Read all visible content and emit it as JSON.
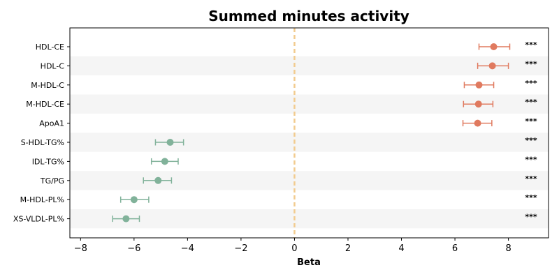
{
  "chart_data": {
    "type": "forest",
    "title": "Summed minutes activity",
    "xlabel": "Beta",
    "xlim": [
      -8.4,
      9.5
    ],
    "xticks": [
      -8,
      -6,
      -4,
      -2,
      0,
      2,
      4,
      6,
      8
    ],
    "xtick_labels": [
      "−8",
      "−6",
      "−4",
      "−2",
      "0",
      "2",
      "4",
      "6",
      "8"
    ],
    "reference_line": 0,
    "colors": {
      "positive": "#E07A5F",
      "negative": "#81B29A",
      "reference_line": "#F2CC8F",
      "band": "#F5F5F5"
    },
    "rows": [
      {
        "label": "HDL-CE",
        "beta": 7.45,
        "ci_low": 6.9,
        "ci_high": 8.05,
        "sig": "***"
      },
      {
        "label": "HDL-C",
        "beta": 7.4,
        "ci_low": 6.85,
        "ci_high": 8.0,
        "sig": "***"
      },
      {
        "label": "M-HDL-C",
        "beta": 6.9,
        "ci_low": 6.35,
        "ci_high": 7.45,
        "sig": "***"
      },
      {
        "label": "M-HDL-CE",
        "beta": 6.88,
        "ci_low": 6.32,
        "ci_high": 7.42,
        "sig": "***"
      },
      {
        "label": "ApoA1",
        "beta": 6.85,
        "ci_low": 6.3,
        "ci_high": 7.38,
        "sig": "***"
      },
      {
        "label": "S-HDL-TG%",
        "beta": -4.65,
        "ci_low": -5.2,
        "ci_high": -4.15,
        "sig": "***"
      },
      {
        "label": "IDL-TG%",
        "beta": -4.85,
        "ci_low": -5.35,
        "ci_high": -4.35,
        "sig": "***"
      },
      {
        "label": "TG/PG",
        "beta": -5.1,
        "ci_low": -5.65,
        "ci_high": -4.6,
        "sig": "***"
      },
      {
        "label": "M-HDL-PL%",
        "beta": -6.0,
        "ci_low": -6.5,
        "ci_high": -5.45,
        "sig": "***"
      },
      {
        "label": "XS-VLDL-PL%",
        "beta": -6.3,
        "ci_low": -6.8,
        "ci_high": -5.8,
        "sig": "***"
      }
    ]
  }
}
